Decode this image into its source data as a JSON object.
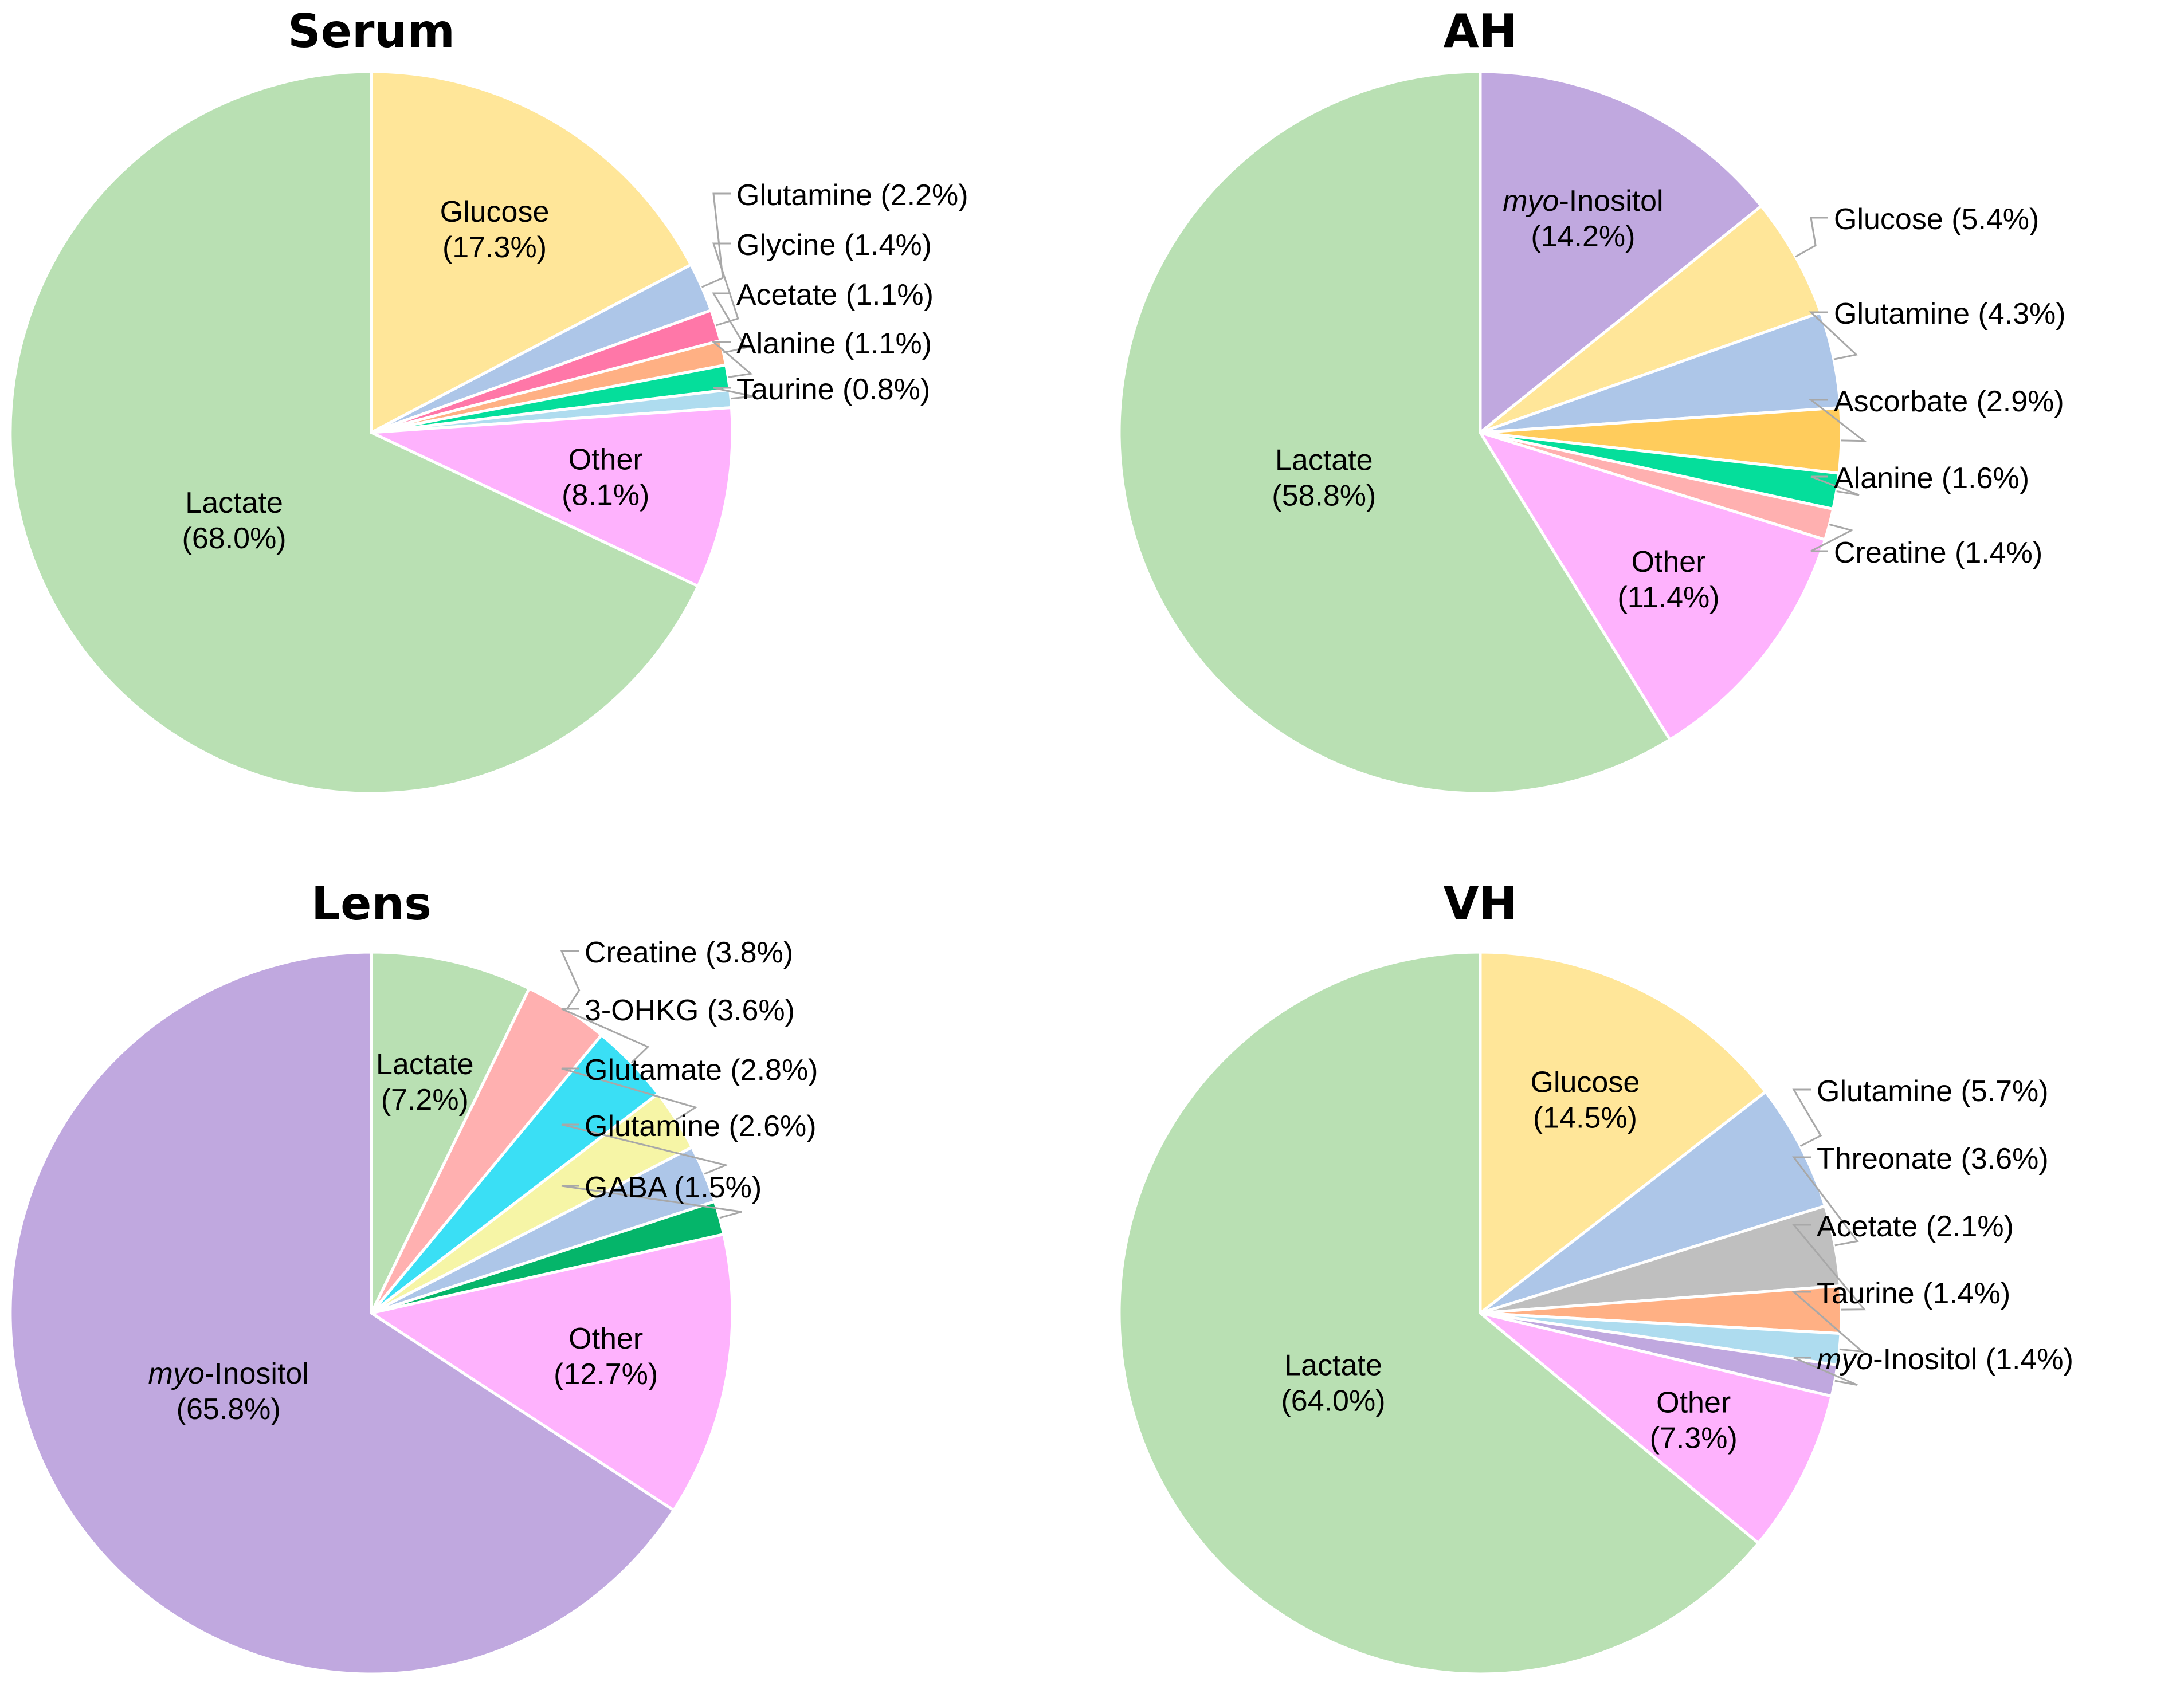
{
  "colors": {
    "lactate": "#b9e0b3",
    "glucose": "#ffe699",
    "glutamine": "#adc6e8",
    "glycine": "#ff77a8",
    "acetate": "#ffb084",
    "alanine": "#05de9b",
    "taurine": "#aedcef",
    "other": "#feb2fd",
    "myo_inositol": "#c0a8df",
    "ascorbate": "#ffcc5c",
    "creatine": "#ffb0b0",
    "ohkg": "#3adff5",
    "glutamate": "#f6f5a6",
    "gaba": "#05b56a",
    "threonate": "#bfbfbf"
  },
  "chart_data": [
    {
      "type": "pie",
      "title": "Serum",
      "slices": [
        {
          "label": "Glucose",
          "value": 17.3,
          "display": "Glucose (17.3%)",
          "color_key": "glucose",
          "inside": true,
          "lines": [
            "Glucose",
            "(17.3%)"
          ]
        },
        {
          "label": "Glutamine",
          "value": 2.2,
          "display": "Glutamine (2.2%)",
          "color_key": "glutamine",
          "inside": false
        },
        {
          "label": "Glycine",
          "value": 1.4,
          "display": "Glycine (1.4%)",
          "color_key": "glycine",
          "inside": false
        },
        {
          "label": "Acetate",
          "value": 1.1,
          "display": "Acetate (1.1%)",
          "color_key": "acetate",
          "inside": false
        },
        {
          "label": "Alanine",
          "value": 1.1,
          "display": "Alanine (1.1%)",
          "color_key": "alanine",
          "inside": false
        },
        {
          "label": "Taurine",
          "value": 0.8,
          "display": "Taurine (0.8%)",
          "color_key": "taurine",
          "inside": false
        },
        {
          "label": "Other",
          "value": 8.1,
          "display": "Other (8.1%)",
          "color_key": "other",
          "inside": true,
          "lines": [
            "Other",
            "(8.1%)"
          ]
        },
        {
          "label": "Lactate",
          "value": 68.0,
          "display": "Lactate (68.0%)",
          "color_key": "lactate",
          "inside": true,
          "lines": [
            "Lactate",
            "(68.0%)"
          ]
        }
      ]
    },
    {
      "type": "pie",
      "title": "AH",
      "slices": [
        {
          "label": "myo-Inositol",
          "value": 14.2,
          "display": "myo-Inositol (14.2%)",
          "color_key": "myo_inositol",
          "inside": true,
          "lines": [
            "myo-Inositol",
            "(14.2%)"
          ]
        },
        {
          "label": "Glucose",
          "value": 5.4,
          "display": "Glucose (5.4%)",
          "color_key": "glucose",
          "inside": false
        },
        {
          "label": "Glutamine",
          "value": 4.3,
          "display": "Glutamine (4.3%)",
          "color_key": "glutamine",
          "inside": false
        },
        {
          "label": "Ascorbate",
          "value": 2.9,
          "display": "Ascorbate (2.9%)",
          "color_key": "ascorbate",
          "inside": false
        },
        {
          "label": "Alanine",
          "value": 1.6,
          "display": "Alanine (1.6%)",
          "color_key": "alanine",
          "inside": false
        },
        {
          "label": "Creatine",
          "value": 1.4,
          "display": "Creatine (1.4%)",
          "color_key": "creatine",
          "inside": false
        },
        {
          "label": "Other",
          "value": 11.4,
          "display": "Other (11.4%)",
          "color_key": "other",
          "inside": true,
          "lines": [
            "Other",
            "(11.4%)"
          ]
        },
        {
          "label": "Lactate",
          "value": 58.8,
          "display": "Lactate (58.8%)",
          "color_key": "lactate",
          "inside": true,
          "lines": [
            "Lactate",
            "(58.8%)"
          ]
        }
      ]
    },
    {
      "type": "pie",
      "title": "Lens",
      "slices": [
        {
          "label": "Lactate",
          "value": 7.2,
          "display": "Lactate (7.2%)",
          "color_key": "lactate",
          "inside": true,
          "lines": [
            "Lactate",
            "(7.2%)"
          ]
        },
        {
          "label": "Creatine",
          "value": 3.8,
          "display": "Creatine (3.8%)",
          "color_key": "creatine",
          "inside": false
        },
        {
          "label": "3-OHKG",
          "value": 3.6,
          "display": "3-OHKG (3.6%)",
          "color_key": "ohkg",
          "inside": false
        },
        {
          "label": "Glutamate",
          "value": 2.8,
          "display": "Glutamate (2.8%)",
          "color_key": "glutamate",
          "inside": false
        },
        {
          "label": "Glutamine",
          "value": 2.6,
          "display": "Glutamine (2.6%)",
          "color_key": "glutamine",
          "inside": false
        },
        {
          "label": "GABA",
          "value": 1.5,
          "display": "GABA (1.5%)",
          "color_key": "gaba",
          "inside": false
        },
        {
          "label": "Other",
          "value": 12.7,
          "display": "Other (12.7%)",
          "color_key": "other",
          "inside": true,
          "lines": [
            "Other",
            "(12.7%)"
          ]
        },
        {
          "label": "myo-Inositol",
          "value": 65.8,
          "display": "myo-Inositol (65.8%)",
          "color_key": "myo_inositol",
          "inside": true,
          "lines": [
            "myo-Inositol",
            "(65.8%)"
          ]
        }
      ]
    },
    {
      "type": "pie",
      "title": "VH",
      "slices": [
        {
          "label": "Glucose",
          "value": 14.5,
          "display": "Glucose (14.5%)",
          "color_key": "glucose",
          "inside": true,
          "lines": [
            "Glucose",
            "(14.5%)"
          ]
        },
        {
          "label": "Glutamine",
          "value": 5.7,
          "display": "Glutamine (5.7%)",
          "color_key": "glutamine",
          "inside": false
        },
        {
          "label": "Threonate",
          "value": 3.6,
          "display": "Threonate (3.6%)",
          "color_key": "threonate",
          "inside": false
        },
        {
          "label": "Acetate",
          "value": 2.1,
          "display": "Acetate (2.1%)",
          "color_key": "acetate",
          "inside": false
        },
        {
          "label": "Taurine",
          "value": 1.4,
          "display": "Taurine (1.4%)",
          "color_key": "taurine",
          "inside": false
        },
        {
          "label": "myo-Inositol",
          "value": 1.4,
          "display": "myo-Inositol (1.4%)",
          "color_key": "myo_inositol",
          "inside": false
        },
        {
          "label": "Other",
          "value": 7.3,
          "display": "Other (7.3%)",
          "color_key": "other",
          "inside": true,
          "lines": [
            "Other",
            "(7.3%)"
          ]
        },
        {
          "label": "Lactate",
          "value": 64.0,
          "display": "Lactate (64.0%)",
          "color_key": "lactate",
          "inside": true,
          "lines": [
            "Lactate",
            "(64.0%)"
          ]
        }
      ]
    }
  ]
}
